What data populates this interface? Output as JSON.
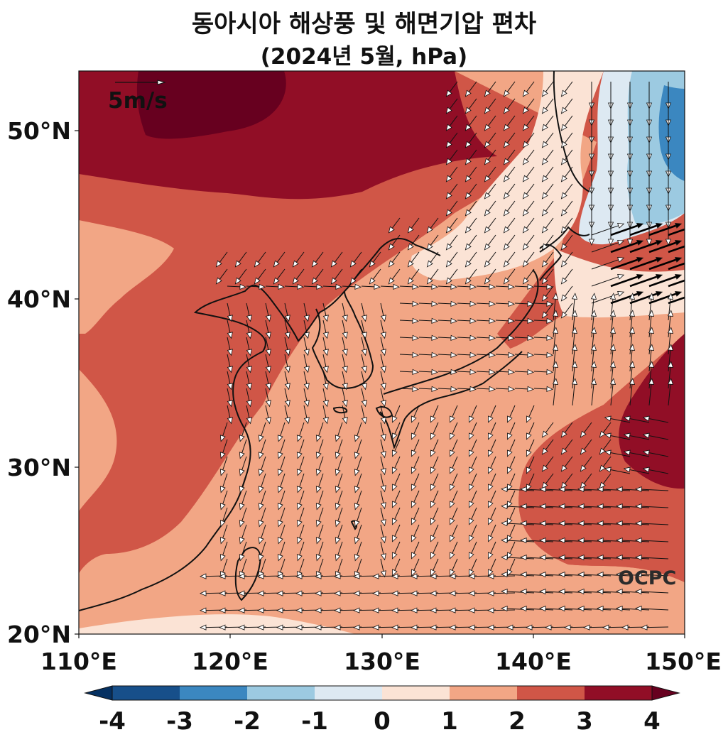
{
  "title": {
    "line1": "동아시아 해상풍 및 해면기압 편차",
    "line2": "(2024년 5월, hPa)"
  },
  "axes": {
    "lat_labels": [
      "50°N",
      "40°N",
      "30°N",
      "20°N"
    ],
    "lon_labels": [
      "110°E",
      "120°E",
      "130°E",
      "140°E",
      "150°E"
    ],
    "lon_range": [
      110,
      150
    ],
    "lat_range": [
      20,
      53.5
    ]
  },
  "reference_vector": {
    "label": "5m/s",
    "speed": 5
  },
  "logo": "OCPC",
  "colorbar": {
    "ticks": [
      "-4",
      "-3",
      "-2",
      "-1",
      "0",
      "1",
      "2",
      "3",
      "4"
    ],
    "colors": [
      "#053061",
      "#174f8a",
      "#3b87c0",
      "#9ccae1",
      "#dde9f2",
      "#fbe3d5",
      "#f2a685",
      "#d05647",
      "#910e26",
      "#67001f"
    ]
  }
}
